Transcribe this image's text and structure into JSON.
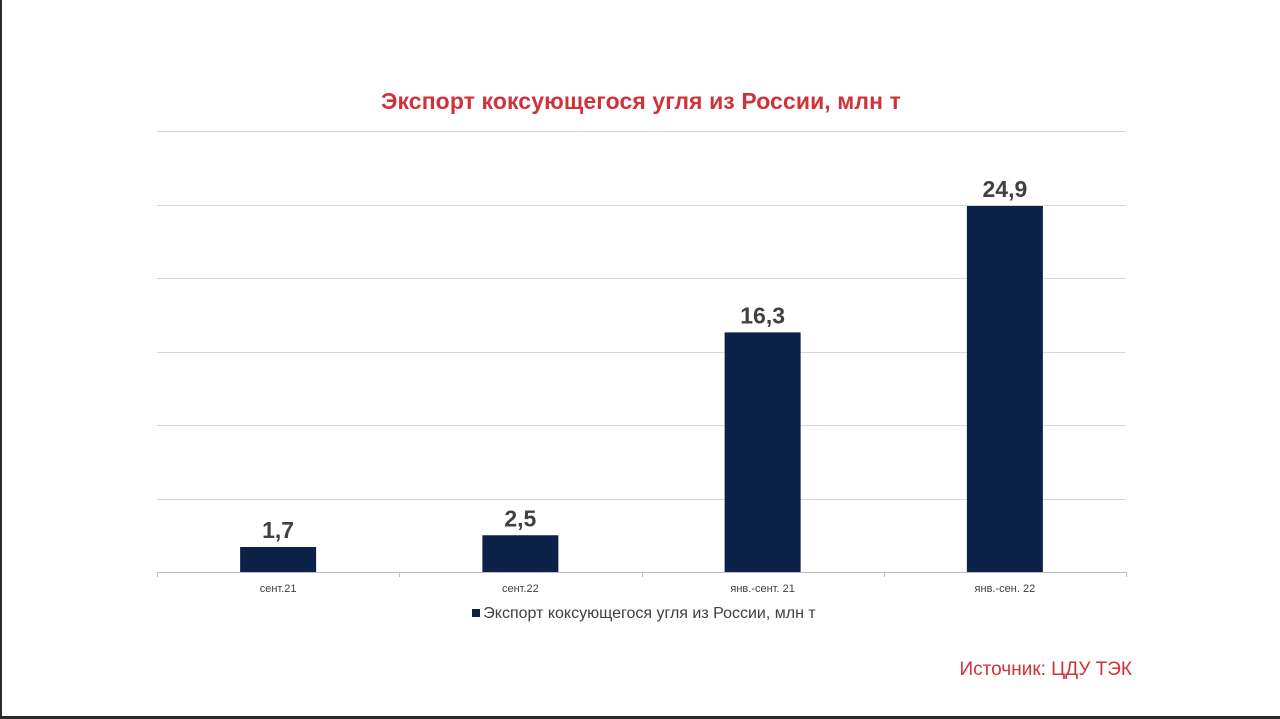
{
  "chart_data": {
    "type": "bar",
    "title": "Экспорт коксующегося угля из России, млн т",
    "categories": [
      "сент.21",
      "сент.22",
      "янв.-сент. 21",
      "янв.-сен. 22"
    ],
    "series": [
      {
        "name": "Экспорт коксующегося угля из России, млн т",
        "values": [
          1.7,
          2.5,
          16.3,
          24.9
        ],
        "labels": [
          "1,7",
          "2,5",
          "16,3",
          "24,9"
        ],
        "color": "#0b2148"
      }
    ],
    "ylim": [
      0,
      30
    ],
    "grid": true,
    "legend": "bottom",
    "title_color": "#d0323a"
  },
  "source_text": "Источник: ЦДУ ТЭК"
}
